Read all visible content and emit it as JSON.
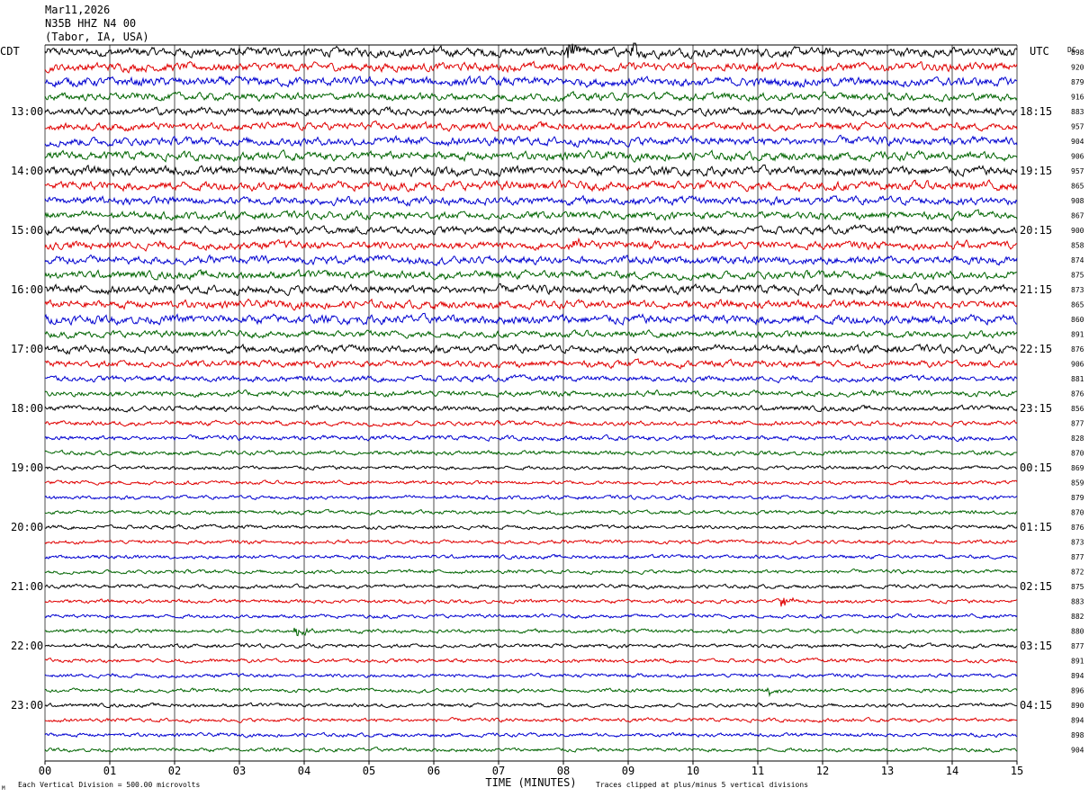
{
  "header": {
    "date": "Mar11,2026",
    "station": "N35B HHZ N4 00",
    "location": "(Tabor, IA, USA)"
  },
  "left_tz": "CDT",
  "right_tz": "UTC",
  "dc_label": "DC",
  "footer": {
    "vertical_division": "Each Vertical Division =  500.00 microvolts",
    "clipping": "Traces clipped at plus/minus 5 vertical divisions",
    "corner_mark": "M"
  },
  "colors": {
    "trace_cycle": [
      "#000000",
      "#e00000",
      "#0000d0",
      "#006400"
    ],
    "grid": "#000000",
    "background": "#ffffff"
  },
  "chart_data": {
    "type": "line",
    "title": "",
    "xlabel": "TIME (MINUTES)",
    "x_ticks": [
      "00",
      "01",
      "02",
      "03",
      "04",
      "05",
      "06",
      "07",
      "08",
      "09",
      "10",
      "11",
      "12",
      "13",
      "14",
      "15"
    ],
    "xlim": [
      0,
      15
    ],
    "rows_per_hour": 4,
    "left_hour_labels": [
      "13:00",
      "14:00",
      "15:00",
      "16:00",
      "17:00",
      "18:00",
      "19:00",
      "20:00",
      "21:00",
      "22:00",
      "23:00"
    ],
    "right_hour_labels": [
      "18:15",
      "19:15",
      "20:15",
      "21:15",
      "22:15",
      "23:15",
      "00:15",
      "01:15",
      "02:15",
      "03:15",
      "04:15"
    ],
    "first_hour_label_row": 4,
    "dc_offsets": [
      898,
      920,
      879,
      916,
      883,
      957,
      904,
      906,
      957,
      865,
      908,
      867,
      900,
      858,
      874,
      875,
      873,
      865,
      860,
      891,
      876,
      906,
      881,
      876,
      856,
      877,
      828,
      870,
      869,
      859,
      879,
      870,
      876,
      873,
      877,
      872,
      875,
      883,
      882,
      880,
      877,
      891,
      894,
      896,
      890,
      894,
      898,
      904
    ],
    "row_amplitude_divisions": [
      1.9,
      1.8,
      1.9,
      1.6,
      1.6,
      1.6,
      1.8,
      1.8,
      1.9,
      1.9,
      1.7,
      1.6,
      1.6,
      1.7,
      1.7,
      1.7,
      1.8,
      1.7,
      1.9,
      1.4,
      1.6,
      1.4,
      1.2,
      1.2,
      1.1,
      1.0,
      1.0,
      0.9,
      0.8,
      0.8,
      0.8,
      0.8,
      0.8,
      0.8,
      0.8,
      0.8,
      0.8,
      0.8,
      0.8,
      0.8,
      0.8,
      0.8,
      0.8,
      0.8,
      0.8,
      0.8,
      0.8,
      0.8
    ],
    "events": [
      {
        "row": 0,
        "minute": 8.1,
        "peak_divisions": 5
      },
      {
        "row": 0,
        "minute": 9.1,
        "peak_divisions": 5
      },
      {
        "row": 13,
        "minute": 8.2,
        "peak_divisions": 3
      },
      {
        "row": 37,
        "minute": 11.4,
        "peak_divisions": 3
      },
      {
        "row": 39,
        "minute": 3.9,
        "peak_divisions": 4
      },
      {
        "row": 43,
        "minute": 11.2,
        "peak_divisions": 2
      }
    ],
    "grid": true
  }
}
